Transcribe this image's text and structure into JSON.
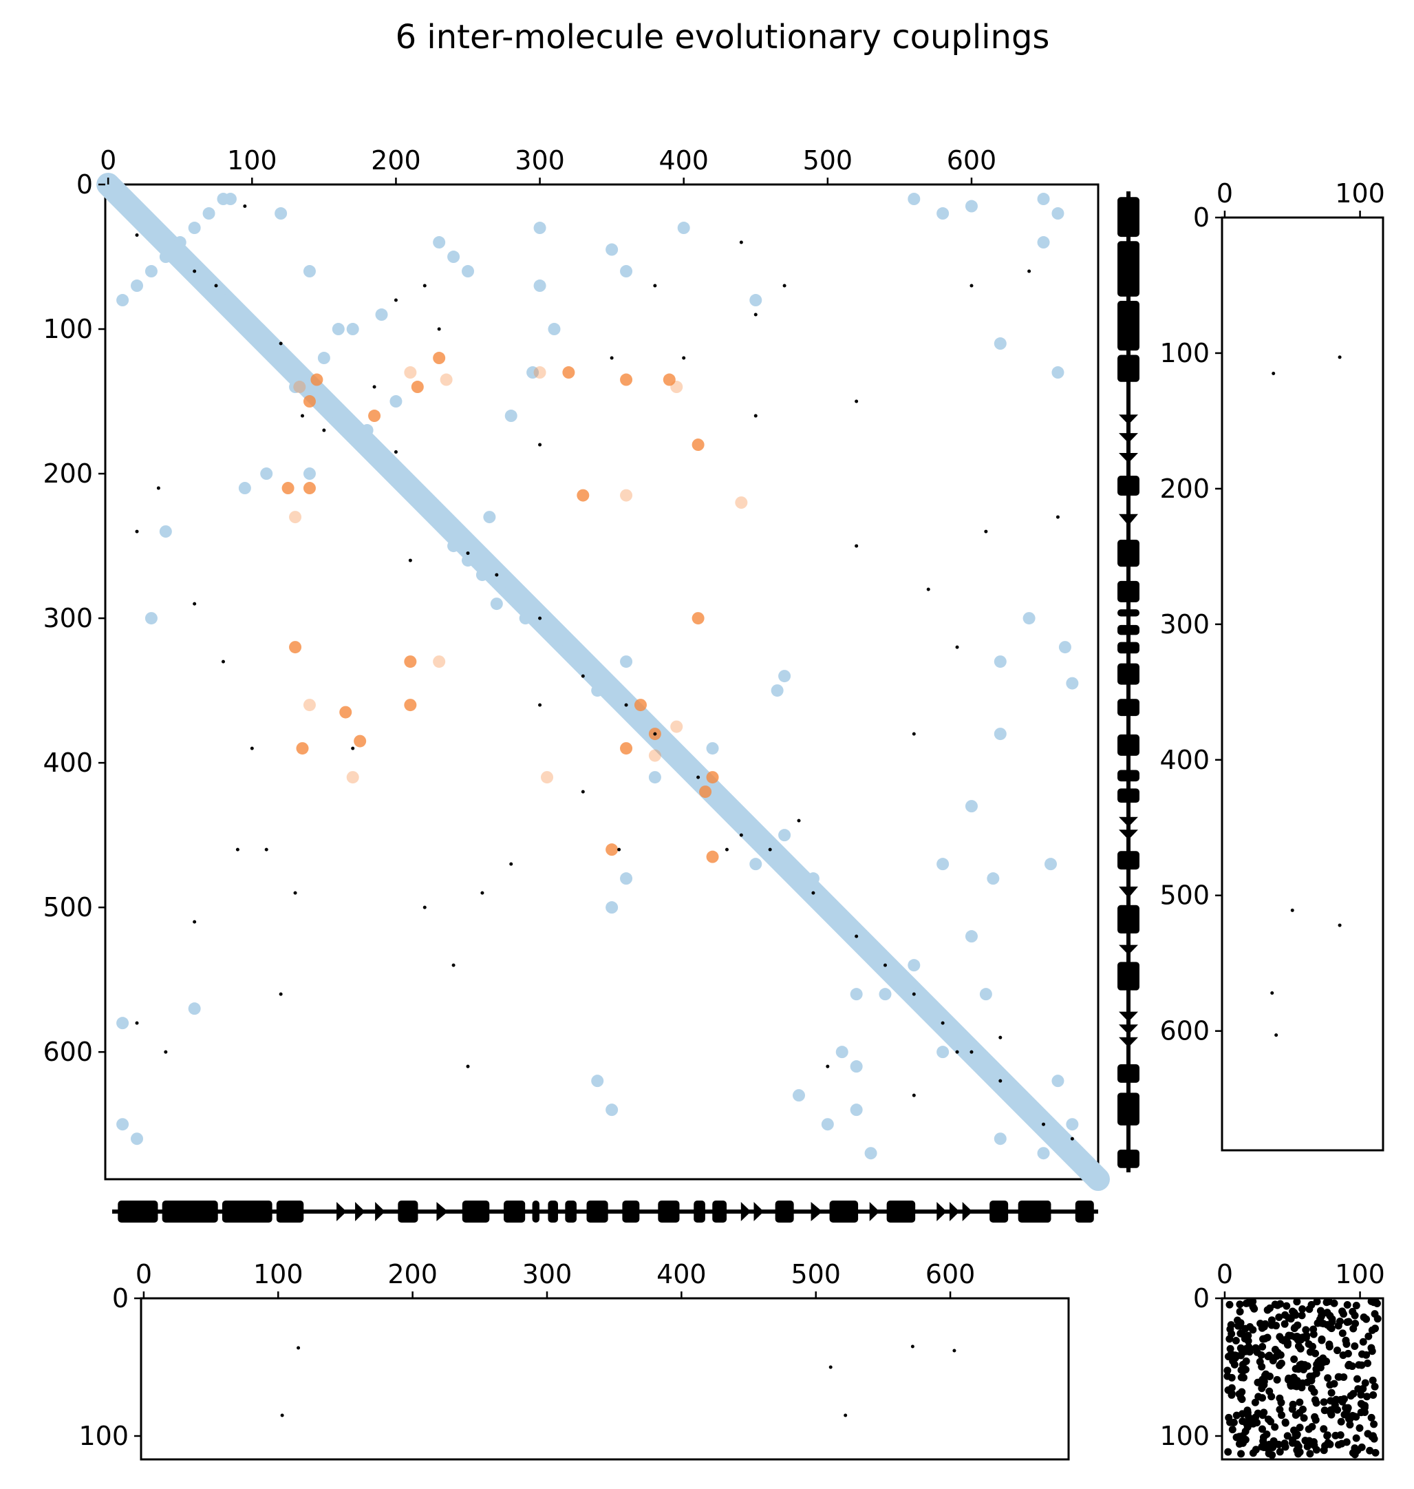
{
  "chart_data": {
    "type": "scatter",
    "title": "6 inter-molecule evolutionary couplings",
    "colors": {
      "structure_contacts": "#b4d3e9",
      "inter_contacts": "#f58a3e",
      "ecs": "#000000",
      "frame": "#000000"
    },
    "panels": [
      {
        "id": "main",
        "description_type": "contact-map",
        "xlim": [
          -2,
          688
        ],
        "ylim": [
          0,
          688
        ],
        "y_inverted": true,
        "xticks": [
          0,
          100,
          200,
          300,
          400,
          500,
          600
        ],
        "yticks": [
          0,
          100,
          200,
          300,
          400,
          500,
          600
        ],
        "x_tick_position": "top",
        "diagonal_band": [
          [
            0,
            0
          ],
          [
            688,
            688
          ]
        ],
        "structure_contacts_sample": [
          [
            5,
            5
          ],
          [
            40,
            40
          ],
          [
            80,
            80
          ],
          [
            120,
            120
          ],
          [
            160,
            160
          ],
          [
            200,
            200
          ],
          [
            240,
            240
          ],
          [
            280,
            280
          ],
          [
            320,
            320
          ],
          [
            360,
            360
          ],
          [
            400,
            400
          ],
          [
            440,
            440
          ],
          [
            480,
            480
          ],
          [
            520,
            520
          ],
          [
            560,
            560
          ],
          [
            600,
            600
          ],
          [
            640,
            640
          ],
          [
            680,
            680
          ],
          [
            10,
            80
          ],
          [
            30,
            60
          ],
          [
            50,
            40
          ],
          [
            70,
            20
          ],
          [
            85,
            10
          ],
          [
            80,
            10
          ],
          [
            60,
            30
          ],
          [
            40,
            50
          ],
          [
            20,
            70
          ],
          [
            130,
            140
          ],
          [
            150,
            120
          ],
          [
            170,
            100
          ],
          [
            190,
            90
          ],
          [
            200,
            150
          ],
          [
            180,
            170
          ],
          [
            140,
            200
          ],
          [
            110,
            200
          ],
          [
            95,
            210
          ],
          [
            240,
            250
          ],
          [
            260,
            270
          ],
          [
            290,
            300
          ],
          [
            270,
            290
          ],
          [
            340,
            350
          ],
          [
            360,
            330
          ],
          [
            380,
            410
          ],
          [
            420,
            390
          ],
          [
            450,
            470
          ],
          [
            470,
            450
          ],
          [
            490,
            480
          ],
          [
            520,
            560
          ],
          [
            540,
            560
          ],
          [
            560,
            540
          ],
          [
            580,
            600
          ],
          [
            620,
            660
          ],
          [
            660,
            620
          ],
          [
            670,
            650
          ],
          [
            650,
            670
          ],
          [
            230,
            40
          ],
          [
            240,
            50
          ],
          [
            250,
            60
          ],
          [
            40,
            240
          ],
          [
            30,
            300
          ],
          [
            300,
            30
          ],
          [
            350,
            45
          ],
          [
            360,
            60
          ],
          [
            400,
            30
          ],
          [
            450,
            80
          ],
          [
            465,
            350
          ],
          [
            470,
            340
          ],
          [
            510,
            600
          ],
          [
            520,
            610
          ],
          [
            600,
            520
          ],
          [
            610,
            560
          ],
          [
            350,
            500
          ],
          [
            360,
            480
          ],
          [
            120,
            20
          ],
          [
            140,
            60
          ],
          [
            160,
            100
          ],
          [
            580,
            20
          ],
          [
            560,
            10
          ],
          [
            600,
            15
          ],
          [
            650,
            10
          ],
          [
            660,
            20
          ],
          [
            10,
            650
          ],
          [
            20,
            660
          ],
          [
            10,
            580
          ],
          [
            60,
            570
          ],
          [
            300,
            70
          ],
          [
            310,
            100
          ],
          [
            295,
            130
          ],
          [
            280,
            160
          ],
          [
            265,
            230
          ],
          [
            250,
            260
          ],
          [
            340,
            620
          ],
          [
            350,
            640
          ],
          [
            480,
            630
          ],
          [
            500,
            650
          ],
          [
            520,
            640
          ],
          [
            530,
            670
          ],
          [
            620,
            110
          ],
          [
            650,
            40
          ],
          [
            660,
            130
          ],
          [
            665,
            320
          ],
          [
            670,
            345
          ],
          [
            655,
            470
          ],
          [
            620,
            380
          ],
          [
            600,
            430
          ],
          [
            615,
            480
          ],
          [
            640,
            300
          ],
          [
            620,
            330
          ],
          [
            580,
            470
          ]
        ],
        "inter_contacts_sample": [
          [
            133,
            140
          ],
          [
            145,
            135
          ],
          [
            140,
            150
          ],
          [
            210,
            130
          ],
          [
            215,
            140
          ],
          [
            230,
            120
          ],
          [
            235,
            135
          ],
          [
            125,
            210
          ],
          [
            140,
            210
          ],
          [
            130,
            230
          ],
          [
            360,
            135
          ],
          [
            390,
            135
          ],
          [
            395,
            140
          ],
          [
            410,
            180
          ],
          [
            330,
            215
          ],
          [
            360,
            215
          ],
          [
            320,
            130
          ],
          [
            380,
            380
          ],
          [
            395,
            375
          ],
          [
            370,
            360
          ],
          [
            360,
            390
          ],
          [
            380,
            395
          ],
          [
            415,
            420
          ],
          [
            420,
            410
          ],
          [
            140,
            360
          ],
          [
            135,
            390
          ],
          [
            130,
            320
          ],
          [
            170,
            410
          ],
          [
            210,
            330
          ],
          [
            210,
            360
          ],
          [
            305,
            410
          ],
          [
            410,
            300
          ],
          [
            420,
            465
          ],
          [
            440,
            220
          ],
          [
            175,
            385
          ],
          [
            165,
            365
          ],
          [
            230,
            330
          ],
          [
            185,
            160
          ],
          [
            350,
            460
          ],
          [
            300,
            130
          ]
        ],
        "ecs_sample": [
          [
            20,
            35
          ],
          [
            60,
            60
          ],
          [
            75,
            70
          ],
          [
            95,
            15
          ],
          [
            120,
            110
          ],
          [
            135,
            160
          ],
          [
            150,
            170
          ],
          [
            185,
            140
          ],
          [
            200,
            185
          ],
          [
            210,
            260
          ],
          [
            230,
            100
          ],
          [
            250,
            255
          ],
          [
            270,
            270
          ],
          [
            300,
            300
          ],
          [
            330,
            340
          ],
          [
            360,
            360
          ],
          [
            380,
            380
          ],
          [
            410,
            410
          ],
          [
            440,
            450
          ],
          [
            460,
            460
          ],
          [
            490,
            490
          ],
          [
            520,
            520
          ],
          [
            540,
            540
          ],
          [
            560,
            560
          ],
          [
            580,
            580
          ],
          [
            600,
            600
          ],
          [
            620,
            620
          ],
          [
            650,
            650
          ],
          [
            670,
            660
          ],
          [
            355,
            460
          ],
          [
            300,
            180
          ],
          [
            400,
            120
          ],
          [
            450,
            90
          ],
          [
            470,
            70
          ],
          [
            20,
            240
          ],
          [
            35,
            210
          ],
          [
            60,
            290
          ],
          [
            80,
            330
          ],
          [
            100,
            390
          ],
          [
            110,
            460
          ],
          [
            130,
            490
          ],
          [
            60,
            510
          ],
          [
            200,
            80
          ],
          [
            220,
            70
          ],
          [
            380,
            70
          ],
          [
            440,
            40
          ],
          [
            520,
            150
          ],
          [
            600,
            70
          ],
          [
            640,
            60
          ],
          [
            20,
            580
          ],
          [
            40,
            600
          ],
          [
            560,
            630
          ],
          [
            590,
            600
          ],
          [
            620,
            590
          ],
          [
            660,
            230
          ],
          [
            300,
            360
          ],
          [
            330,
            420
          ],
          [
            350,
            120
          ],
          [
            480,
            440
          ],
          [
            500,
            610
          ],
          [
            560,
            380
          ],
          [
            590,
            320
          ],
          [
            430,
            460
          ],
          [
            280,
            470
          ],
          [
            260,
            490
          ],
          [
            220,
            500
          ],
          [
            170,
            390
          ],
          [
            90,
            460
          ],
          [
            120,
            560
          ],
          [
            450,
            160
          ],
          [
            520,
            250
          ],
          [
            570,
            280
          ],
          [
            610,
            240
          ],
          [
            250,
            610
          ],
          [
            240,
            540
          ]
        ]
      },
      {
        "id": "intra-second",
        "description_type": "contact-map",
        "xlim": [
          -2,
          117
        ],
        "ylim": [
          0,
          688
        ],
        "y_inverted": true,
        "xticks": [
          0,
          100
        ],
        "yticks": [
          0,
          100,
          200,
          300,
          400,
          500,
          600
        ],
        "x_tick_position": "top",
        "points": [
          [
            36,
            115
          ],
          [
            85,
            103
          ],
          [
            50,
            511
          ],
          [
            85,
            522
          ],
          [
            35,
            572
          ],
          [
            38,
            603
          ]
        ]
      },
      {
        "id": "inter-bottom",
        "description_type": "contact-map",
        "xlim": [
          -2,
          688
        ],
        "ylim": [
          0,
          117
        ],
        "y_inverted": true,
        "xticks": [
          0,
          100,
          200,
          300,
          400,
          500,
          600
        ],
        "yticks": [
          0,
          100
        ],
        "x_tick_position": "top",
        "points": [
          [
            115,
            36
          ],
          [
            103,
            85
          ],
          [
            511,
            50
          ],
          [
            522,
            85
          ],
          [
            572,
            35
          ],
          [
            603,
            38
          ]
        ]
      },
      {
        "id": "intra-small",
        "description_type": "contact-map",
        "xlim": [
          -2,
          117
        ],
        "ylim": [
          0,
          117
        ],
        "y_inverted": true,
        "xticks": [
          0,
          100
        ],
        "yticks": [
          0,
          100
        ],
        "x_tick_position": "top",
        "dense_points": true
      },
      {
        "id": "secondary-structure-bottom",
        "description_type": "secondary-structure-track",
        "xlim": [
          -2,
          688
        ],
        "elements": [
          {
            "type": "helix",
            "start": 2,
            "end": 30
          },
          {
            "type": "helix",
            "start": 33,
            "end": 72
          },
          {
            "type": "helix",
            "start": 75,
            "end": 110
          },
          {
            "type": "helix",
            "start": 113,
            "end": 132
          },
          {
            "type": "strand",
            "start": 155,
            "end": 162
          },
          {
            "type": "strand",
            "start": 168,
            "end": 175
          },
          {
            "type": "strand",
            "start": 182,
            "end": 189
          },
          {
            "type": "helix",
            "start": 198,
            "end": 212
          },
          {
            "type": "strand",
            "start": 225,
            "end": 233
          },
          {
            "type": "helix",
            "start": 243,
            "end": 262
          },
          {
            "type": "helix",
            "start": 272,
            "end": 287
          },
          {
            "type": "helix",
            "start": 292,
            "end": 297
          },
          {
            "type": "helix",
            "start": 303,
            "end": 310
          },
          {
            "type": "helix",
            "start": 315,
            "end": 323
          },
          {
            "type": "helix",
            "start": 330,
            "end": 345
          },
          {
            "type": "helix",
            "start": 355,
            "end": 367
          },
          {
            "type": "helix",
            "start": 380,
            "end": 395
          },
          {
            "type": "helix",
            "start": 405,
            "end": 413
          },
          {
            "type": "helix",
            "start": 418,
            "end": 428
          },
          {
            "type": "strand",
            "start": 438,
            "end": 445
          },
          {
            "type": "strand",
            "start": 447,
            "end": 454
          },
          {
            "type": "helix",
            "start": 462,
            "end": 475
          },
          {
            "type": "strand",
            "start": 487,
            "end": 495
          },
          {
            "type": "helix",
            "start": 500,
            "end": 520
          },
          {
            "type": "strand",
            "start": 528,
            "end": 535
          },
          {
            "type": "helix",
            "start": 540,
            "end": 560
          },
          {
            "type": "strand",
            "start": 575,
            "end": 582
          },
          {
            "type": "strand",
            "start": 584,
            "end": 591
          },
          {
            "type": "strand",
            "start": 593,
            "end": 600
          },
          {
            "type": "helix",
            "start": 612,
            "end": 625
          },
          {
            "type": "helix",
            "start": 632,
            "end": 655
          },
          {
            "type": "helix",
            "start": 672,
            "end": 685
          }
        ]
      }
    ]
  }
}
